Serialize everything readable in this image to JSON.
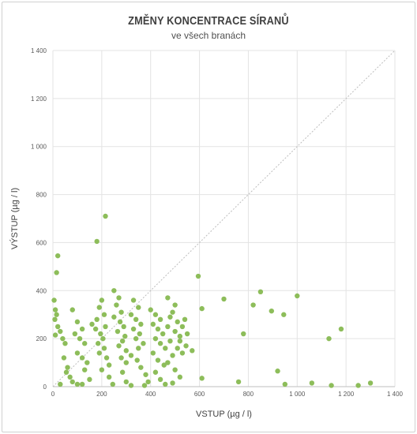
{
  "chart_data": {
    "type": "scatter",
    "title": "ZMĚNY KONCENTRACE SÍRANŮ",
    "subtitle": "ve všech branách",
    "xlabel": "VSTUP (µg / l)",
    "ylabel": "VÝSTUP (µg / l)",
    "xlim": [
      0,
      1400
    ],
    "ylim": [
      0,
      1400
    ],
    "x_ticks": [
      "0",
      "200",
      "400",
      "600",
      "800",
      "1 000",
      "1 200",
      "1 400"
    ],
    "y_ticks": [
      "0",
      "200",
      "400",
      "600",
      "800",
      "1 000",
      "1 200",
      "1 400"
    ],
    "grid": "vertical and horizontal",
    "reference_line": "y = x (dotted)",
    "point_color": "#8dbd5a",
    "points": [
      [
        215,
        710
      ],
      [
        180,
        605
      ],
      [
        20,
        545
      ],
      [
        15,
        475
      ],
      [
        595,
        460
      ],
      [
        850,
        395
      ],
      [
        1000,
        378
      ],
      [
        700,
        365
      ],
      [
        820,
        340
      ],
      [
        895,
        315
      ],
      [
        610,
        325
      ],
      [
        945,
        300
      ],
      [
        780,
        220
      ],
      [
        1180,
        240
      ],
      [
        1130,
        200
      ],
      [
        570,
        150
      ],
      [
        610,
        35
      ],
      [
        920,
        65
      ],
      [
        950,
        10
      ],
      [
        1060,
        15
      ],
      [
        1140,
        5
      ],
      [
        1250,
        5
      ],
      [
        1300,
        15
      ],
      [
        760,
        20
      ],
      [
        5,
        360
      ],
      [
        10,
        320
      ],
      [
        15,
        300
      ],
      [
        8,
        280
      ],
      [
        20,
        250
      ],
      [
        30,
        230
      ],
      [
        10,
        215
      ],
      [
        40,
        200
      ],
      [
        50,
        180
      ],
      [
        45,
        120
      ],
      [
        60,
        80
      ],
      [
        70,
        40
      ],
      [
        30,
        10
      ],
      [
        80,
        20
      ],
      [
        100,
        10
      ],
      [
        55,
        60
      ],
      [
        80,
        320
      ],
      [
        100,
        270
      ],
      [
        120,
        240
      ],
      [
        90,
        220
      ],
      [
        110,
        200
      ],
      [
        130,
        180
      ],
      [
        100,
        140
      ],
      [
        120,
        120
      ],
      [
        140,
        100
      ],
      [
        130,
        70
      ],
      [
        150,
        30
      ],
      [
        120,
        10
      ],
      [
        190,
        330
      ],
      [
        200,
        360
      ],
      [
        210,
        300
      ],
      [
        180,
        280
      ],
      [
        160,
        260
      ],
      [
        175,
        240
      ],
      [
        195,
        220
      ],
      [
        215,
        250
      ],
      [
        205,
        200
      ],
      [
        185,
        180
      ],
      [
        210,
        160
      ],
      [
        190,
        140
      ],
      [
        220,
        120
      ],
      [
        230,
        90
      ],
      [
        200,
        70
      ],
      [
        230,
        40
      ],
      [
        245,
        10
      ],
      [
        250,
        400
      ],
      [
        270,
        370
      ],
      [
        260,
        340
      ],
      [
        280,
        310
      ],
      [
        250,
        290
      ],
      [
        275,
        270
      ],
      [
        290,
        250
      ],
      [
        265,
        230
      ],
      [
        295,
        210
      ],
      [
        285,
        190
      ],
      [
        270,
        170
      ],
      [
        300,
        150
      ],
      [
        280,
        120
      ],
      [
        300,
        100
      ],
      [
        285,
        60
      ],
      [
        300,
        20
      ],
      [
        320,
        5
      ],
      [
        330,
        360
      ],
      [
        350,
        330
      ],
      [
        320,
        300
      ],
      [
        340,
        280
      ],
      [
        360,
        260
      ],
      [
        330,
        240
      ],
      [
        355,
        220
      ],
      [
        340,
        200
      ],
      [
        370,
        180
      ],
      [
        350,
        160
      ],
      [
        320,
        130
      ],
      [
        345,
        110
      ],
      [
        360,
        80
      ],
      [
        380,
        50
      ],
      [
        390,
        20
      ],
      [
        375,
        5
      ],
      [
        400,
        320
      ],
      [
        420,
        300
      ],
      [
        440,
        280
      ],
      [
        410,
        260
      ],
      [
        430,
        240
      ],
      [
        450,
        220
      ],
      [
        420,
        200
      ],
      [
        440,
        180
      ],
      [
        460,
        160
      ],
      [
        410,
        140
      ],
      [
        430,
        110
      ],
      [
        455,
        90
      ],
      [
        420,
        60
      ],
      [
        440,
        30
      ],
      [
        460,
        10
      ],
      [
        470,
        370
      ],
      [
        500,
        340
      ],
      [
        490,
        310
      ],
      [
        480,
        290
      ],
      [
        510,
        270
      ],
      [
        470,
        250
      ],
      [
        500,
        230
      ],
      [
        520,
        210
      ],
      [
        480,
        190
      ],
      [
        510,
        160
      ],
      [
        490,
        130
      ],
      [
        470,
        100
      ],
      [
        500,
        70
      ],
      [
        520,
        40
      ],
      [
        490,
        15
      ],
      [
        540,
        280
      ],
      [
        530,
        250
      ],
      [
        550,
        220
      ],
      [
        520,
        190
      ],
      [
        545,
        170
      ],
      [
        530,
        140
      ]
    ]
  }
}
